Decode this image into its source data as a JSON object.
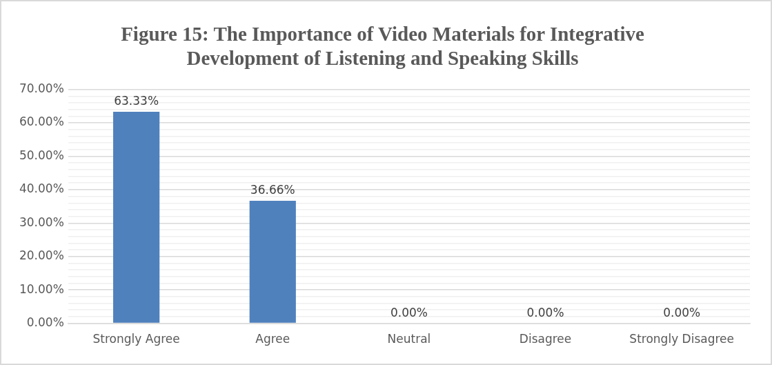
{
  "chart_data": {
    "type": "bar",
    "title": "Figure 15: The Importance of Video Materials for Integrative Development of Listening and Speaking Skills",
    "categories": [
      "Strongly Agree",
      "Agree",
      "Neutral",
      "Disagree",
      "Strongly Disagree"
    ],
    "values": [
      63.33,
      36.66,
      0,
      0,
      0
    ],
    "color": "#4f81bd",
    "value_labels": [
      "63.33%",
      "36.66%",
      "0.00%",
      "0.00%",
      "0.00%"
    ],
    "ylim": [
      0,
      70
    ],
    "yticks": [
      {
        "value": 0,
        "label": "0.00%"
      },
      {
        "value": 2,
        "label": null
      },
      {
        "value": 4,
        "label": null
      },
      {
        "value": 6,
        "label": null
      },
      {
        "value": 8,
        "label": null
      },
      {
        "value": 10,
        "label": "10.00%"
      },
      {
        "value": 12,
        "label": null
      },
      {
        "value": 14,
        "label": null
      },
      {
        "value": 16,
        "label": null
      },
      {
        "value": 18,
        "label": null
      },
      {
        "value": 20,
        "label": "20.00%"
      },
      {
        "value": 22,
        "label": null
      },
      {
        "value": 24,
        "label": null
      },
      {
        "value": 26,
        "label": null
      },
      {
        "value": 28,
        "label": null
      },
      {
        "value": 30,
        "label": "30.00%"
      },
      {
        "value": 32,
        "label": null
      },
      {
        "value": 34,
        "label": null
      },
      {
        "value": 36,
        "label": null
      },
      {
        "value": 38,
        "label": null
      },
      {
        "value": 40,
        "label": "40.00%"
      },
      {
        "value": 42,
        "label": null
      },
      {
        "value": 44,
        "label": null
      },
      {
        "value": 46,
        "label": null
      },
      {
        "value": 48,
        "label": null
      },
      {
        "value": 50,
        "label": "50.00%"
      },
      {
        "value": 52,
        "label": null
      },
      {
        "value": 54,
        "label": null
      },
      {
        "value": 56,
        "label": null
      },
      {
        "value": 58,
        "label": null
      },
      {
        "value": 60,
        "label": "60.00%"
      },
      {
        "value": 62,
        "label": null
      },
      {
        "value": 64,
        "label": null
      },
      {
        "value": 66,
        "label": null
      },
      {
        "value": 68,
        "label": null
      },
      {
        "value": 70,
        "label": "70.00%"
      }
    ],
    "grid": "y",
    "legend": false
  }
}
